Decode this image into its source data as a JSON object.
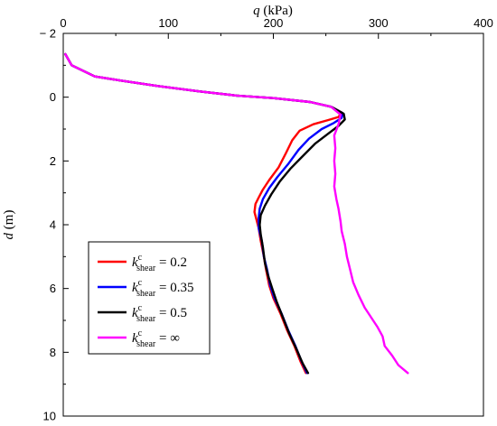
{
  "chart_data": {
    "type": "line",
    "title": "",
    "xlabel": {
      "symbol": "q",
      "unit": " (kPa)"
    },
    "ylabel": {
      "symbol": "d",
      "unit": " (m)"
    },
    "xlim": [
      0,
      400
    ],
    "ylim": [
      -2,
      10
    ],
    "x_ticks": [
      "0",
      "100",
      "200",
      "300",
      "400"
    ],
    "y_ticks": [
      "− 2",
      "0",
      "2",
      "4",
      "6",
      "8",
      "10"
    ],
    "x_axis_position": "top",
    "y_inverted": true,
    "grid": false,
    "legend_position": "left-middle",
    "series": [
      {
        "name": {
          "base": "k",
          "sup": "c",
          "sub": "shear",
          "value": " = 0.2"
        },
        "color": "#ff0000",
        "points": [
          [
            2,
            -1.35
          ],
          [
            8,
            -1.0
          ],
          [
            30,
            -0.65
          ],
          [
            55,
            -0.52
          ],
          [
            90,
            -0.35
          ],
          [
            130,
            -0.18
          ],
          [
            165,
            -0.05
          ],
          [
            200,
            0.03
          ],
          [
            235,
            0.15
          ],
          [
            255,
            0.3
          ],
          [
            265,
            0.48
          ],
          [
            262,
            0.62
          ],
          [
            252,
            0.72
          ],
          [
            238,
            0.85
          ],
          [
            225,
            1.05
          ],
          [
            218,
            1.35
          ],
          [
            212,
            1.75
          ],
          [
            205,
            2.2
          ],
          [
            196,
            2.6
          ],
          [
            190,
            2.9
          ],
          [
            186,
            3.15
          ],
          [
            183,
            3.35
          ],
          [
            182,
            3.6
          ],
          [
            184,
            3.85
          ],
          [
            186,
            4.1
          ],
          [
            188,
            4.5
          ],
          [
            191,
            5.0
          ],
          [
            193,
            5.4
          ],
          [
            196,
            5.9
          ],
          [
            200,
            6.3
          ],
          [
            207,
            6.8
          ],
          [
            213,
            7.3
          ],
          [
            220,
            7.8
          ],
          [
            226,
            8.3
          ],
          [
            231,
            8.65
          ]
        ]
      },
      {
        "name": {
          "base": "k",
          "sup": "c",
          "sub": "shear",
          "value": " = 0.35"
        },
        "color": "#0000ff",
        "points": [
          [
            2,
            -1.35
          ],
          [
            8,
            -1.0
          ],
          [
            30,
            -0.65
          ],
          [
            55,
            -0.52
          ],
          [
            90,
            -0.35
          ],
          [
            130,
            -0.18
          ],
          [
            165,
            -0.05
          ],
          [
            200,
            0.03
          ],
          [
            235,
            0.15
          ],
          [
            255,
            0.3
          ],
          [
            266,
            0.5
          ],
          [
            265,
            0.65
          ],
          [
            257,
            0.82
          ],
          [
            246,
            1.0
          ],
          [
            234,
            1.3
          ],
          [
            224,
            1.65
          ],
          [
            214,
            2.1
          ],
          [
            204,
            2.5
          ],
          [
            196,
            2.85
          ],
          [
            190,
            3.2
          ],
          [
            187,
            3.5
          ],
          [
            186,
            3.8
          ],
          [
            186,
            4.1
          ],
          [
            189,
            4.5
          ],
          [
            191,
            5.0
          ],
          [
            194,
            5.4
          ],
          [
            197,
            5.9
          ],
          [
            201,
            6.3
          ],
          [
            208,
            6.8
          ],
          [
            214,
            7.3
          ],
          [
            221,
            7.8
          ],
          [
            227,
            8.3
          ],
          [
            232,
            8.65
          ]
        ]
      },
      {
        "name": {
          "base": "k",
          "sup": "c",
          "sub": "shear",
          "value": " = 0.5"
        },
        "color": "#000000",
        "points": [
          [
            2,
            -1.35
          ],
          [
            8,
            -1.0
          ],
          [
            30,
            -0.65
          ],
          [
            55,
            -0.52
          ],
          [
            90,
            -0.35
          ],
          [
            130,
            -0.18
          ],
          [
            165,
            -0.05
          ],
          [
            200,
            0.03
          ],
          [
            235,
            0.15
          ],
          [
            255,
            0.3
          ],
          [
            267,
            0.52
          ],
          [
            268,
            0.7
          ],
          [
            262,
            0.9
          ],
          [
            252,
            1.15
          ],
          [
            240,
            1.45
          ],
          [
            228,
            1.85
          ],
          [
            216,
            2.25
          ],
          [
            206,
            2.65
          ],
          [
            198,
            3.05
          ],
          [
            192,
            3.4
          ],
          [
            188,
            3.7
          ],
          [
            187,
            4.0
          ],
          [
            188,
            4.3
          ],
          [
            190,
            4.7
          ],
          [
            192,
            5.2
          ],
          [
            195,
            5.6
          ],
          [
            199,
            6.0
          ],
          [
            203,
            6.4
          ],
          [
            209,
            6.9
          ],
          [
            215,
            7.4
          ],
          [
            222,
            7.9
          ],
          [
            228,
            8.35
          ],
          [
            233,
            8.65
          ]
        ]
      },
      {
        "name": {
          "base": "k",
          "sup": "c",
          "sub": "shear",
          "value": " = ∞"
        },
        "color": "#ff00ff",
        "points": [
          [
            2,
            -1.35
          ],
          [
            8,
            -1.0
          ],
          [
            30,
            -0.65
          ],
          [
            55,
            -0.52
          ],
          [
            90,
            -0.35
          ],
          [
            130,
            -0.18
          ],
          [
            165,
            -0.05
          ],
          [
            200,
            0.03
          ],
          [
            235,
            0.15
          ],
          [
            255,
            0.3
          ],
          [
            264,
            0.55
          ],
          [
            262,
            0.85
          ],
          [
            258,
            1.2
          ],
          [
            259,
            1.6
          ],
          [
            258,
            2.0
          ],
          [
            259,
            2.4
          ],
          [
            258,
            2.8
          ],
          [
            260,
            3.2
          ],
          [
            262,
            3.5
          ],
          [
            264,
            3.9
          ],
          [
            265,
            4.2
          ],
          [
            268,
            4.6
          ],
          [
            270,
            5.0
          ],
          [
            273,
            5.4
          ],
          [
            276,
            5.8
          ],
          [
            281,
            6.2
          ],
          [
            287,
            6.6
          ],
          [
            293,
            6.9
          ],
          [
            299,
            7.2
          ],
          [
            304,
            7.5
          ],
          [
            306,
            7.8
          ],
          [
            313,
            8.1
          ],
          [
            319,
            8.4
          ],
          [
            328,
            8.65
          ]
        ]
      }
    ]
  }
}
